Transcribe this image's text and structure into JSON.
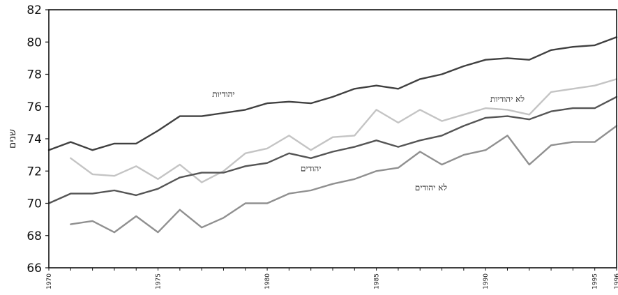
{
  "chart_data": {
    "type": "line",
    "title": "",
    "xlabel": "",
    "ylabel": "שנים",
    "xlim": [
      1970,
      1996
    ],
    "ylim": [
      66,
      82
    ],
    "yticks": [
      66,
      68,
      70,
      72,
      74,
      76,
      78,
      80,
      82
    ],
    "xticks": [
      1970,
      1975,
      1980,
      1985,
      1990,
      1995,
      1996
    ],
    "grid": false,
    "legend": "none",
    "series": [
      {
        "name": "יהודיות",
        "color": "#404040",
        "x": [
          1970,
          1971,
          1972,
          1973,
          1974,
          1975,
          1976,
          1977,
          1978,
          1979,
          1980,
          1981,
          1982,
          1983,
          1984,
          1985,
          1986,
          1987,
          1988,
          1989,
          1990,
          1991,
          1992,
          1993,
          1994,
          1995,
          1996
        ],
        "values": [
          73.3,
          73.8,
          73.3,
          73.7,
          73.7,
          74.5,
          75.4,
          75.4,
          75.6,
          75.8,
          76.2,
          76.3,
          76.2,
          76.6,
          77.1,
          77.3,
          77.1,
          77.7,
          78.0,
          78.5,
          78.9,
          79.0,
          78.9,
          79.5,
          79.7,
          79.8,
          80.3
        ]
      },
      {
        "name": "לא יהודיות",
        "color": "#c4c4c4",
        "x": [
          1971,
          1972,
          1973,
          1974,
          1975,
          1976,
          1977,
          1978,
          1979,
          1980,
          1981,
          1982,
          1983,
          1984,
          1985,
          1986,
          1987,
          1988,
          1989,
          1990,
          1991,
          1992,
          1993,
          1994,
          1995,
          1996
        ],
        "values": [
          72.8,
          71.8,
          71.7,
          72.3,
          71.5,
          72.4,
          71.3,
          72.0,
          73.1,
          73.4,
          74.2,
          73.3,
          74.1,
          74.2,
          75.8,
          75.0,
          75.8,
          75.1,
          75.5,
          75.9,
          75.8,
          75.5,
          76.9,
          77.1,
          77.3,
          77.7
        ]
      },
      {
        "name": "יהודים",
        "color": "#555555",
        "x": [
          1970,
          1971,
          1972,
          1973,
          1974,
          1975,
          1976,
          1977,
          1978,
          1979,
          1980,
          1981,
          1982,
          1983,
          1984,
          1985,
          1986,
          1987,
          1988,
          1989,
          1990,
          1991,
          1992,
          1993,
          1994,
          1995,
          1996
        ],
        "values": [
          70.0,
          70.6,
          70.6,
          70.8,
          70.5,
          70.9,
          71.6,
          71.9,
          71.9,
          72.3,
          72.5,
          73.1,
          72.8,
          73.2,
          73.5,
          73.9,
          73.5,
          73.9,
          74.2,
          74.8,
          75.3,
          75.4,
          75.2,
          75.7,
          75.9,
          75.9,
          76.6
        ]
      },
      {
        "name": "לא יהודים",
        "color": "#909090",
        "x": [
          1971,
          1972,
          1973,
          1974,
          1975,
          1976,
          1977,
          1978,
          1979,
          1980,
          1981,
          1982,
          1983,
          1984,
          1985,
          1986,
          1987,
          1988,
          1989,
          1990,
          1991,
          1992,
          1993,
          1994,
          1995,
          1996
        ],
        "values": [
          68.7,
          68.9,
          68.2,
          69.2,
          68.2,
          69.6,
          68.5,
          69.1,
          70.0,
          70.0,
          70.6,
          70.8,
          71.2,
          71.5,
          72.0,
          72.2,
          73.2,
          72.4,
          73.0,
          73.3,
          74.2,
          72.4,
          73.6,
          73.8,
          73.8,
          74.8
        ]
      }
    ],
    "annotations": [
      {
        "text": "יהודיות",
        "series": "יהודיות",
        "x": 1978,
        "y": 76.6
      },
      {
        "text": "לא יהודיות",
        "series": "לא יהודיות",
        "x": 1991,
        "y": 76.3
      },
      {
        "text": "יהודים",
        "series": "יהודים",
        "x": 1982,
        "y": 72.0
      },
      {
        "text": "לא יהודים",
        "series": "לא יהודים",
        "x": 1987.5,
        "y": 70.8
      }
    ]
  }
}
